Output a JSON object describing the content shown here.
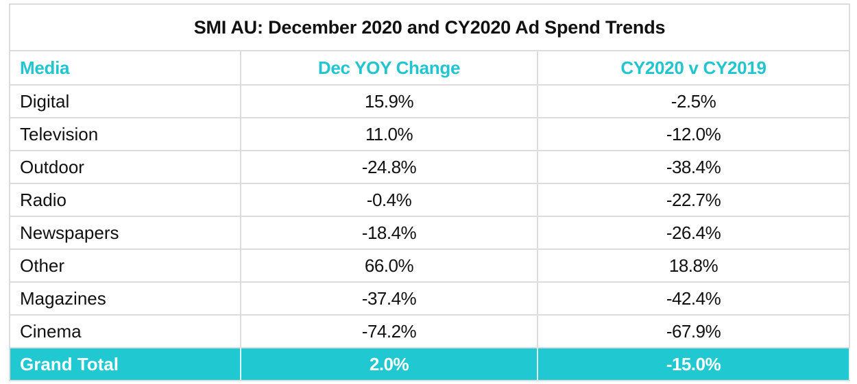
{
  "title": "SMI AU: December 2020 and CY2020 Ad Spend Trends",
  "accent_color": "#20C8D2",
  "columns": [
    "Media",
    "Dec YOY Change",
    "CY2020 v CY2019"
  ],
  "rows": [
    {
      "media": "Digital",
      "dec_yoy": "15.9%",
      "cy_change": "-2.5%"
    },
    {
      "media": "Television",
      "dec_yoy": "11.0%",
      "cy_change": "-12.0%"
    },
    {
      "media": "Outdoor",
      "dec_yoy": "-24.8%",
      "cy_change": "-38.4%"
    },
    {
      "media": "Radio",
      "dec_yoy": "-0.4%",
      "cy_change": "-22.7%"
    },
    {
      "media": "Newspapers",
      "dec_yoy": "-18.4%",
      "cy_change": "-26.4%"
    },
    {
      "media": "Other",
      "dec_yoy": "66.0%",
      "cy_change": "18.8%"
    },
    {
      "media": "Magazines",
      "dec_yoy": "-37.4%",
      "cy_change": "-42.4%"
    },
    {
      "media": "Cinema",
      "dec_yoy": "-74.2%",
      "cy_change": "-67.9%"
    }
  ],
  "total": {
    "media": "Grand Total",
    "dec_yoy": "2.0%",
    "cy_change": "-15.0%"
  }
}
